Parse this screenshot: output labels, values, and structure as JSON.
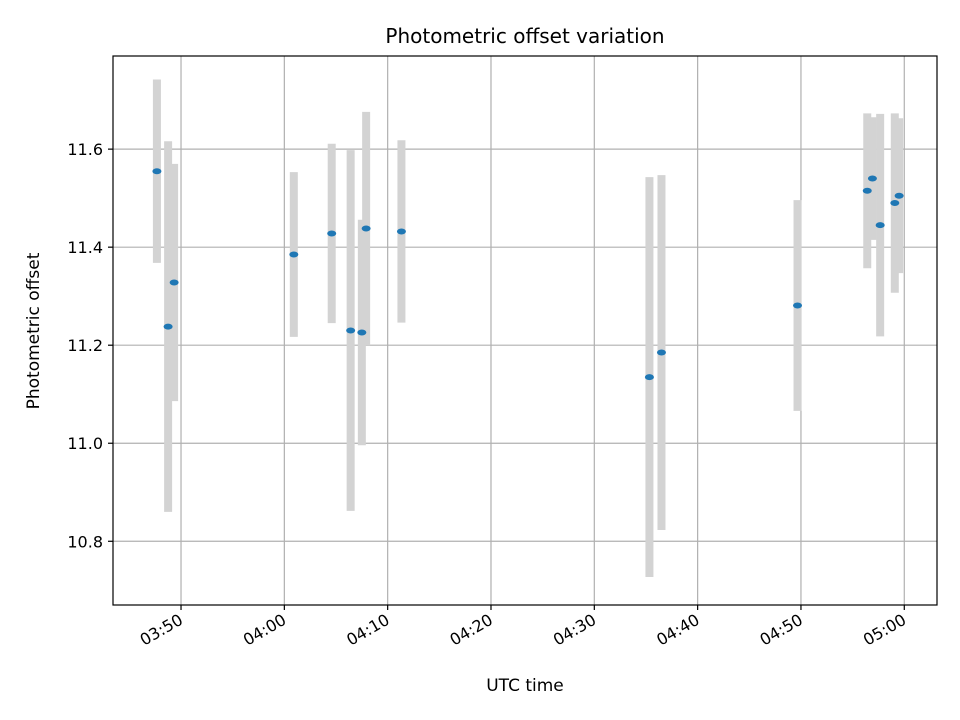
{
  "chart_data": {
    "type": "scatter",
    "title": "Photometric offset variation",
    "xlabel": "UTC time",
    "ylabel": "Photometric offset",
    "x_unit": "minutes",
    "x_ticks": [
      {
        "value": "03:50",
        "label": "03:50"
      },
      {
        "value": "04:00",
        "label": "04:00"
      },
      {
        "value": "04:10",
        "label": "04:10"
      },
      {
        "value": "04:20",
        "label": "04:20"
      },
      {
        "value": "04:30",
        "label": "04:30"
      },
      {
        "value": "04:40",
        "label": "04:40"
      },
      {
        "value": "04:50",
        "label": "04:50"
      },
      {
        "value": "05:00",
        "label": "05:00"
      }
    ],
    "y_ticks": [
      10.8,
      11.0,
      11.2,
      11.4,
      11.6
    ],
    "xlim": [
      "03:43:25",
      "05:03:10"
    ],
    "ylim": [
      10.67,
      11.79
    ],
    "grid": true,
    "marker_color": "#1f77b4",
    "errorbar_color": "#d3d3d3",
    "points": [
      {
        "x": "03:47:40",
        "y": 11.555,
        "yerr": 0.187
      },
      {
        "x": "03:48:45",
        "y": 11.238,
        "yerr": 0.378
      },
      {
        "x": "03:49:20",
        "y": 11.328,
        "yerr": 0.242
      },
      {
        "x": "04:00:55",
        "y": 11.385,
        "yerr": 0.168
      },
      {
        "x": "04:04:35",
        "y": 11.428,
        "yerr": 0.183
      },
      {
        "x": "04:06:25",
        "y": 11.23,
        "yerr": 0.368
      },
      {
        "x": "04:07:30",
        "y": 11.226,
        "yerr": 0.23
      },
      {
        "x": "04:07:55",
        "y": 11.438,
        "yerr": 0.238
      },
      {
        "x": "04:11:20",
        "y": 11.432,
        "yerr": 0.186
      },
      {
        "x": "04:35:20",
        "y": 11.135,
        "yerr": 0.408
      },
      {
        "x": "04:36:30",
        "y": 11.185,
        "yerr": 0.362
      },
      {
        "x": "04:49:40",
        "y": 11.281,
        "yerr": 0.215
      },
      {
        "x": "04:56:25",
        "y": 11.515,
        "yerr": 0.158
      },
      {
        "x": "04:56:55",
        "y": 11.54,
        "yerr": 0.125
      },
      {
        "x": "04:57:40",
        "y": 11.445,
        "yerr": 0.227
      },
      {
        "x": "04:59:05",
        "y": 11.49,
        "yerr": 0.183
      },
      {
        "x": "04:59:30",
        "y": 11.505,
        "yerr": 0.158
      }
    ]
  }
}
